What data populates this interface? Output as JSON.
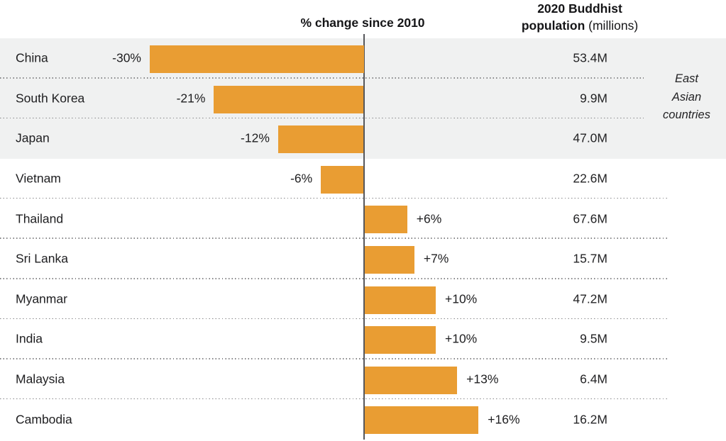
{
  "header": {
    "change_label": "% change since 2010",
    "pop_line1": "2020 Buddhist",
    "pop_line2_bold": "population",
    "pop_line2_note": "(millions)"
  },
  "chart_data": {
    "type": "bar",
    "orientation": "horizontal",
    "title": "% change since 2010",
    "value_column_header": "2020 Buddhist population (millions)",
    "categories": [
      "China",
      "South Korea",
      "Japan",
      "Vietnam",
      "Thailand",
      "Sri Lanka",
      "Myanmar",
      "India",
      "Malaysia",
      "Cambodia"
    ],
    "values_pct_change": [
      -30,
      -21,
      -12,
      -6,
      6,
      7,
      10,
      10,
      13,
      16
    ],
    "value_labels": [
      "-30%",
      "-21%",
      "-12%",
      "-6%",
      "+6%",
      "+7%",
      "+10%",
      "+10%",
      "+13%",
      "+16%"
    ],
    "population_2020_millions": [
      53.4,
      9.9,
      47.0,
      22.6,
      67.6,
      15.7,
      47.2,
      9.5,
      6.4,
      16.2
    ],
    "population_labels": [
      "53.4M",
      "9.9M",
      "47.0M",
      "22.6M",
      "67.6M",
      "15.7M",
      "47.2M",
      "9.5M",
      "6.4M",
      "16.2M"
    ],
    "group_annotation": {
      "label": "East\nAsian\ncountries",
      "applies_to": [
        "China",
        "South Korea",
        "Japan"
      ]
    },
    "xlim": [
      -30,
      16
    ],
    "zero_line": true,
    "legend": "none",
    "colors": {
      "bar": "#E99D33",
      "group_band_background": "#F0F1F1",
      "zero_axis": "#56575B",
      "text": "#1E1E20",
      "separator_dots": "#858587"
    }
  }
}
